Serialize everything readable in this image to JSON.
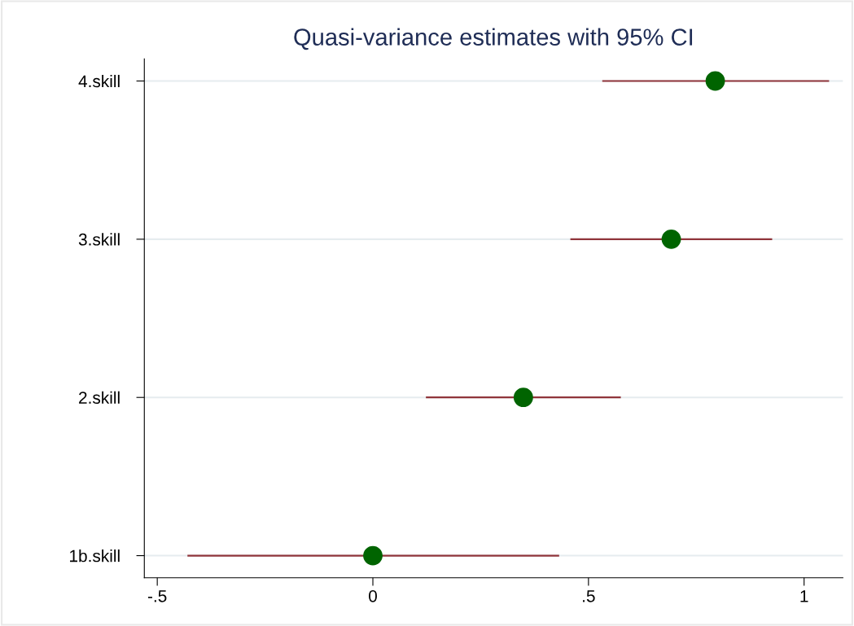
{
  "chart_data": {
    "type": "scatter",
    "title": "Quasi-variance estimates with 95% CI",
    "orientation": "horizontal",
    "categories": [
      "4.skill",
      "3.skill",
      "2.skill",
      "1b.skill"
    ],
    "values": [
      0.794,
      0.692,
      0.349,
      0
    ],
    "errors": [
      [
        0.532,
        1.058
      ],
      [
        0.458,
        0.926
      ],
      [
        0.123,
        0.575
      ],
      [
        -0.43,
        0.432
      ]
    ],
    "color": "#006400",
    "marker": "circle",
    "xlim": [
      -0.53,
      1.09
    ],
    "xticks": [
      {
        "value": -0.5,
        "label": "-.5"
      },
      0,
      {
        "value": 0.5,
        "label": ".5"
      },
      1
    ],
    "grid": "y",
    "legend": false
  }
}
